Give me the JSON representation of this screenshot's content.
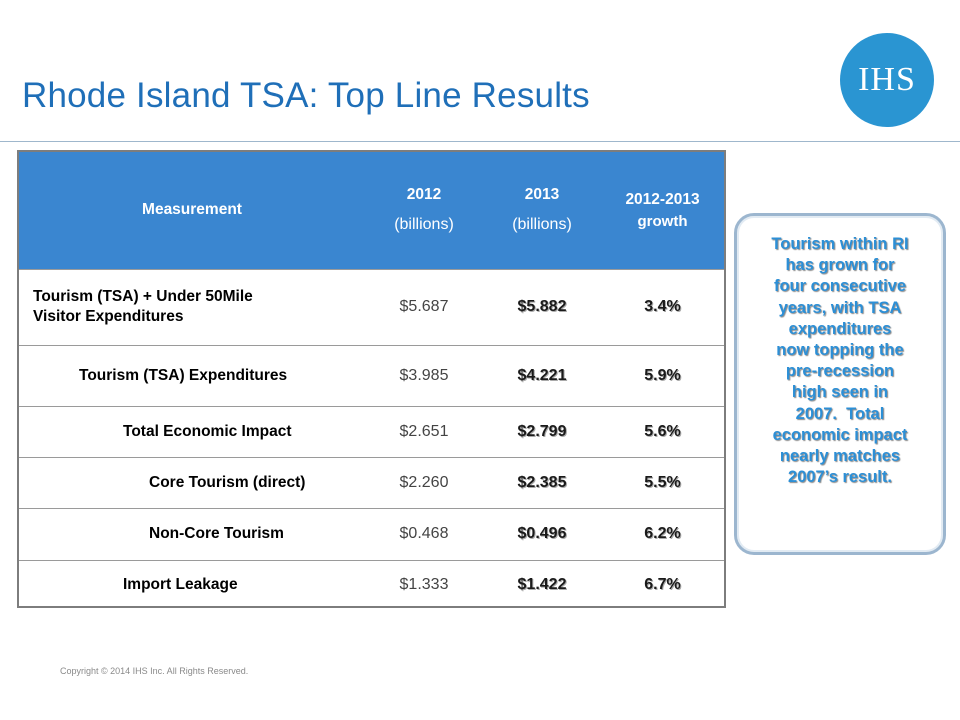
{
  "slide": {
    "title": "Rhode Island TSA: Top Line Results",
    "logo_text": "IHS",
    "copyright": "Copyright © 2014 IHS Inc. All Rights Reserved.",
    "colors": {
      "title": "#1f6fb8",
      "header_bg": "#3a86d0",
      "logo_bg": "#2a95d2",
      "callout_text": "#2c8fd6"
    }
  },
  "table": {
    "headers": {
      "measurement": "Measurement",
      "y2012_line1": "2012",
      "y2012_line2": "(billions)",
      "y2013_line1": "2013",
      "y2013_line2": "(billions)",
      "growth_line1": "2012-2013",
      "growth_line2": "growth"
    },
    "rows": [
      {
        "label_line1": "Tourism (TSA) + Under 50Mile",
        "label_line2": "Visitor Expenditures",
        "v2012": "$5.687",
        "v2013": "$5.882",
        "growth": "3.4%"
      },
      {
        "label": "Tourism (TSA) Expenditures",
        "v2012": "$3.985",
        "v2013": "$4.221",
        "growth": "5.9%"
      },
      {
        "label": "Total Economic Impact",
        "v2012": "$2.651",
        "v2013": "$2.799",
        "growth": "5.6%"
      },
      {
        "label": "Core Tourism (direct)",
        "v2012": "$2.260",
        "v2013": "$2.385",
        "growth": "5.5%"
      },
      {
        "label": "Non-Core Tourism",
        "v2012": "$0.468",
        "v2013": "$0.496",
        "growth": "6.2%"
      },
      {
        "label": "Import Leakage",
        "v2012": "$1.333",
        "v2013": "$1.422",
        "growth": "6.7%"
      }
    ]
  },
  "callout": {
    "lines": [
      "Tourism within RI",
      "has grown for",
      "four consecutive",
      "years, with TSA",
      "expenditures",
      "now topping the",
      "pre-recession",
      "high seen in",
      "2007.  Total",
      "economic impact",
      "nearly matches",
      "2007’s result."
    ]
  }
}
